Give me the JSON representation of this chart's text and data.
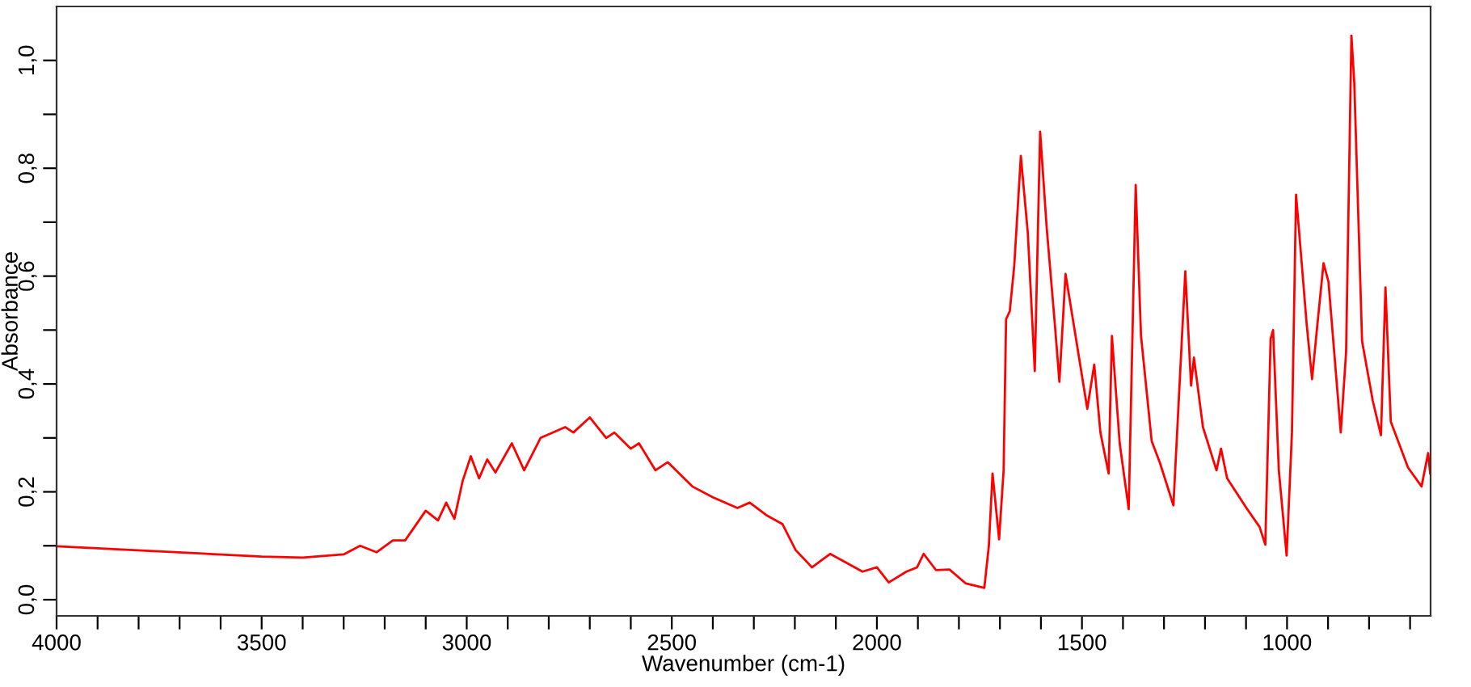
{
  "chart_data": {
    "type": "line",
    "xlabel": "Wavenumber (cm-1)",
    "ylabel": "Absorbance",
    "xlim": [
      4000,
      650
    ],
    "ylim": [
      -0.03,
      1.1
    ],
    "xticks": [
      4000,
      {
        "value": 3900,
        "label": null
      },
      {
        "value": 3800,
        "label": null
      },
      {
        "value": 3700,
        "label": null
      },
      {
        "value": 3600,
        "label": null
      },
      3500,
      {
        "value": 3400,
        "label": null
      },
      {
        "value": 3300,
        "label": null
      },
      {
        "value": 3200,
        "label": null
      },
      {
        "value": 3100,
        "label": null
      },
      3000,
      {
        "value": 2900,
        "label": null
      },
      {
        "value": 2800,
        "label": null
      },
      {
        "value": 2700,
        "label": null
      },
      {
        "value": 2600,
        "label": null
      },
      2500,
      {
        "value": 2400,
        "label": null
      },
      {
        "value": 2300,
        "label": null
      },
      {
        "value": 2200,
        "label": null
      },
      {
        "value": 2100,
        "label": null
      },
      2000,
      {
        "value": 1900,
        "label": null
      },
      {
        "value": 1800,
        "label": null
      },
      {
        "value": 1700,
        "label": null
      },
      {
        "value": 1600,
        "label": null
      },
      1500,
      {
        "value": 1400,
        "label": null
      },
      {
        "value": 1300,
        "label": null
      },
      {
        "value": 1200,
        "label": null
      },
      {
        "value": 1100,
        "label": null
      },
      1000,
      {
        "value": 900,
        "label": null
      },
      {
        "value": 800,
        "label": null
      },
      {
        "value": 700,
        "label": null
      }
    ],
    "yticks": [
      {
        "value": 0,
        "label": "0,0"
      },
      {
        "value": 0.1,
        "label": null
      },
      {
        "value": 0.2,
        "label": "0,2"
      },
      {
        "value": 0.3,
        "label": null
      },
      {
        "value": 0.4,
        "label": "0,4"
      },
      {
        "value": 0.5,
        "label": null
      },
      {
        "value": 0.6,
        "label": "0,6"
      },
      {
        "value": 0.7,
        "label": null
      },
      {
        "value": 0.8,
        "label": "0,8"
      },
      {
        "value": 0.9,
        "label": null
      },
      {
        "value": 1.0,
        "label": "1,0"
      }
    ],
    "grid": false,
    "legend": false,
    "marker": "none",
    "line_style": "solid",
    "series": [
      {
        "color": "#ff0000",
        "x": [
          4000,
          3500,
          3400,
          3300,
          3260,
          3220,
          3180,
          3150,
          3100,
          3070,
          3050,
          3030,
          3010,
          2990,
          2970,
          2950,
          2930,
          2890,
          2860,
          2820,
          2760,
          2740,
          2700,
          2660,
          2640,
          2600,
          2580,
          2540,
          2510,
          2450,
          2400,
          2340,
          2310,
          2270,
          2230,
          2198,
          2158,
          2114,
          2035,
          2000,
          1971,
          1928,
          1902,
          1886,
          1856,
          1823,
          1783,
          1738,
          1727,
          1718,
          1702,
          1691,
          1685,
          1676,
          1665,
          1649,
          1632,
          1615,
          1602,
          1586,
          1566,
          1555,
          1540,
          1520,
          1487,
          1470,
          1455,
          1435,
          1427,
          1408,
          1386,
          1369,
          1356,
          1330,
          1310,
          1277,
          1248,
          1234,
          1227,
          1205,
          1172,
          1161,
          1146,
          1099,
          1067,
          1053,
          1040,
          1034,
          1020,
          1001,
          988,
          978,
          968,
          952,
          939,
          926,
          911,
          899,
          869,
          856,
          843,
          836,
          817,
          791,
          771,
          760,
          747,
          705,
          672,
          656,
          651
        ],
        "values": [
          0.099,
          0.08,
          0.078,
          0.084,
          0.1,
          0.088,
          0.11,
          0.11,
          0.165,
          0.147,
          0.18,
          0.15,
          0.22,
          0.266,
          0.225,
          0.26,
          0.236,
          0.29,
          0.24,
          0.3,
          0.32,
          0.31,
          0.338,
          0.3,
          0.31,
          0.28,
          0.29,
          0.24,
          0.255,
          0.21,
          0.19,
          0.17,
          0.18,
          0.157,
          0.14,
          0.092,
          0.06,
          0.085,
          0.052,
          0.06,
          0.032,
          0.052,
          0.06,
          0.085,
          0.055,
          0.056,
          0.03,
          0.022,
          0.1,
          0.234,
          0.112,
          0.24,
          0.52,
          0.535,
          0.62,
          0.823,
          0.68,
          0.424,
          0.868,
          0.69,
          0.51,
          0.404,
          0.604,
          0.51,
          0.354,
          0.436,
          0.31,
          0.234,
          0.489,
          0.29,
          0.168,
          0.769,
          0.489,
          0.294,
          0.254,
          0.175,
          0.609,
          0.397,
          0.449,
          0.32,
          0.24,
          0.28,
          0.225,
          0.17,
          0.135,
          0.102,
          0.484,
          0.5,
          0.24,
          0.082,
          0.31,
          0.751,
          0.659,
          0.51,
          0.409,
          0.51,
          0.624,
          0.59,
          0.31,
          0.459,
          1.046,
          0.958,
          0.479,
          0.369,
          0.305,
          0.579,
          0.33,
          0.245,
          0.21,
          0.272,
          0.234
        ]
      }
    ]
  }
}
